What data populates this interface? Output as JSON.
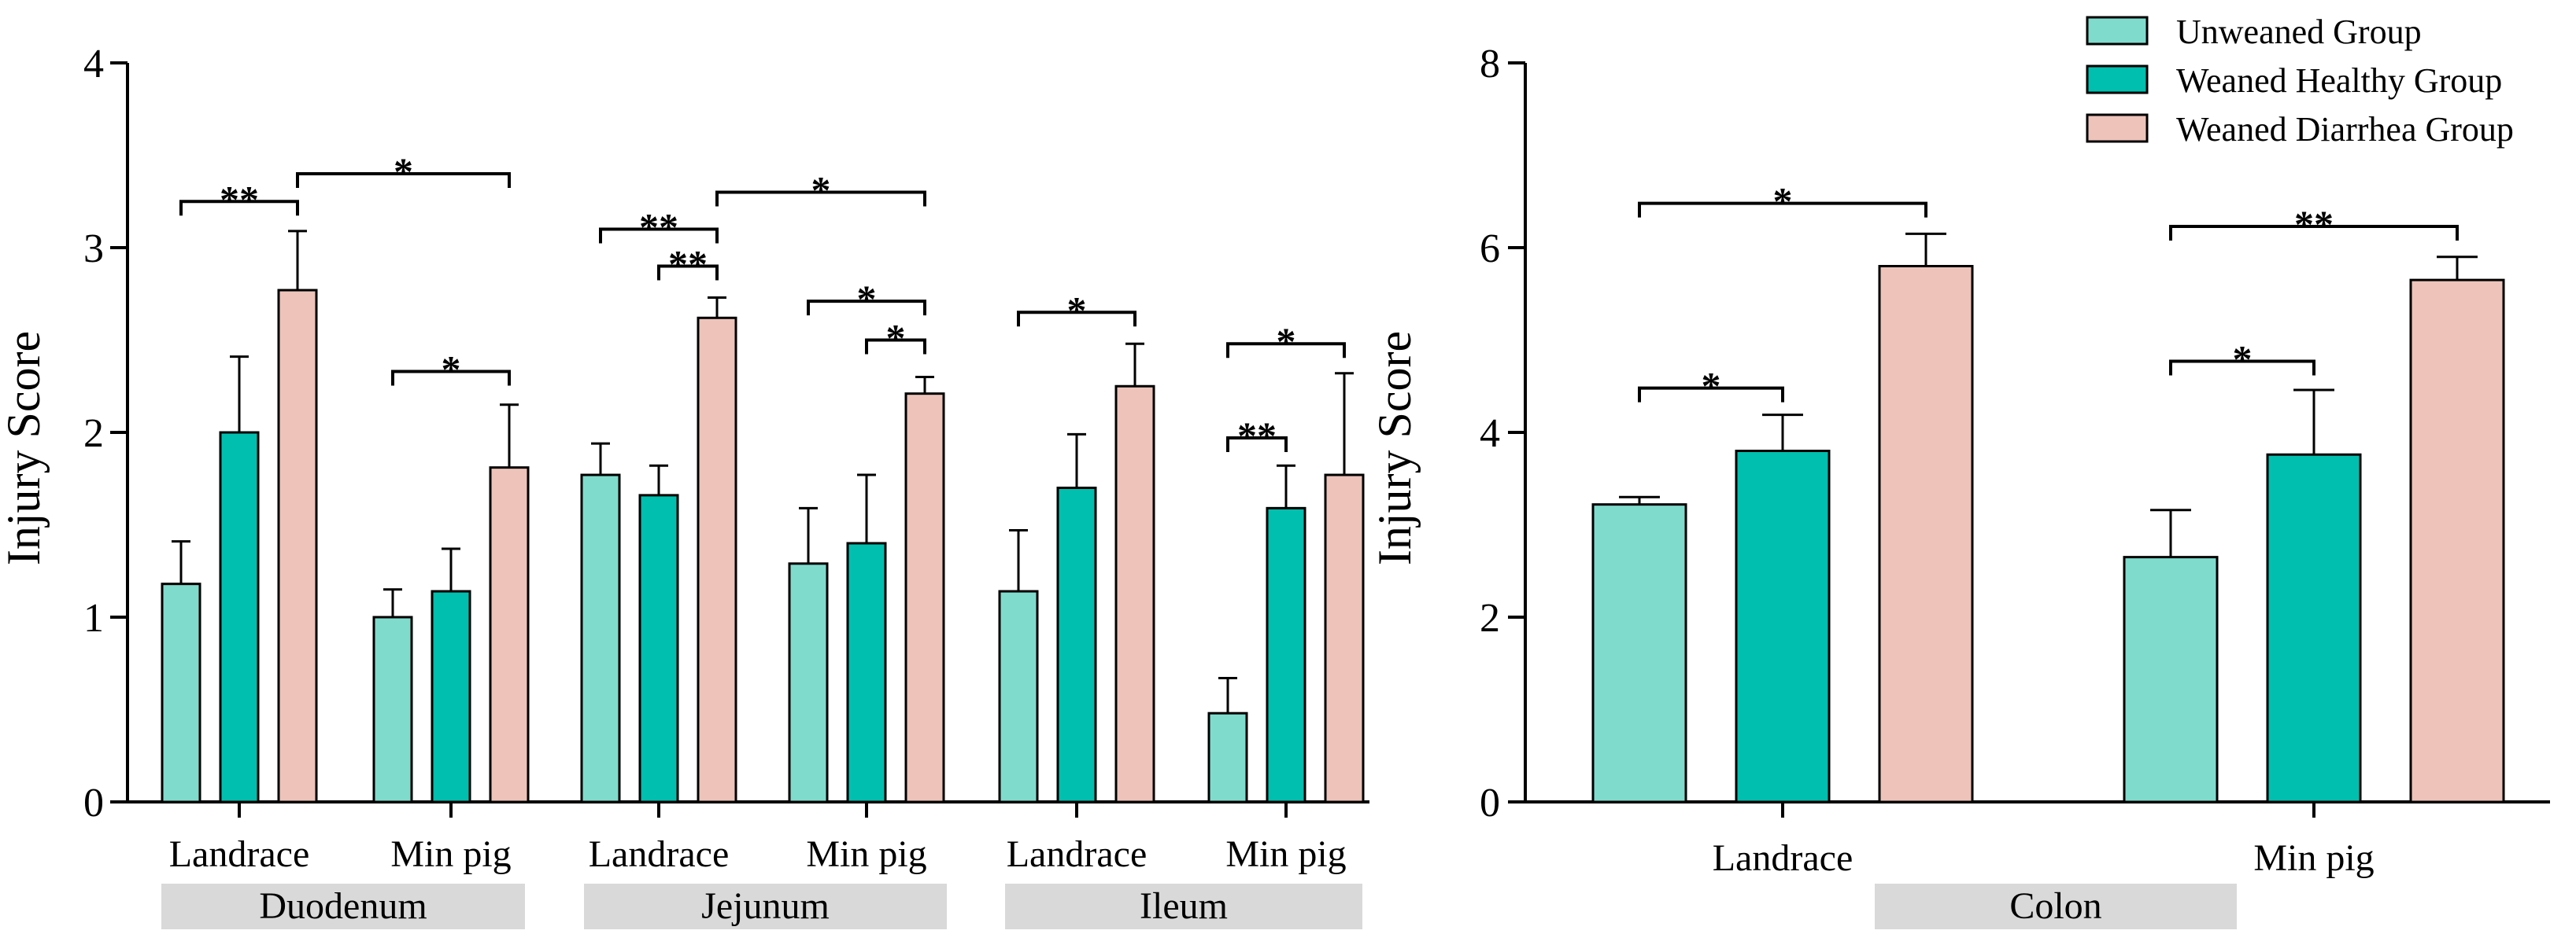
{
  "colors": {
    "unweaned": "#7fdccd",
    "weaned_healthy": "#00bfae",
    "weaned_diarrhea": "#edc3ba"
  },
  "legend": [
    {
      "key": "unweaned",
      "label": "Unweaned Group"
    },
    {
      "key": "weaned_healthy",
      "label": "Weaned Healthy Group"
    },
    {
      "key": "weaned_diarrhea",
      "label": "Weaned Diarrhea Group"
    }
  ],
  "chart_data": [
    {
      "type": "bar",
      "ylabel": "Injury Score",
      "ylim": [
        0,
        4
      ],
      "yticks": [
        "0",
        "1",
        "2",
        "3",
        "4"
      ],
      "series_keys": [
        "unweaned",
        "weaned_healthy",
        "weaned_diarrhea"
      ],
      "groups": [
        {
          "label": "Landrace",
          "region": "Duodenum",
          "values": [
            1.18,
            2.0,
            2.77
          ],
          "errors": [
            0.23,
            0.41,
            0.32
          ]
        },
        {
          "label": "Min pig",
          "region": "Duodenum",
          "values": [
            1.0,
            1.14,
            1.81
          ],
          "errors": [
            0.15,
            0.23,
            0.34
          ]
        },
        {
          "label": "Landrace",
          "region": "Jejunum",
          "values": [
            1.77,
            1.66,
            2.62
          ],
          "errors": [
            0.17,
            0.16,
            0.11
          ]
        },
        {
          "label": "Min pig",
          "region": "Jejunum",
          "values": [
            1.29,
            1.4,
            2.21
          ],
          "errors": [
            0.3,
            0.37,
            0.09
          ]
        },
        {
          "label": "Landrace",
          "region": "Ileum",
          "values": [
            1.14,
            1.7,
            2.25
          ],
          "errors": [
            0.33,
            0.29,
            0.23
          ]
        },
        {
          "label": "Min pig",
          "region": "Ileum",
          "values": [
            0.48,
            1.59,
            1.77
          ],
          "errors": [
            0.19,
            0.23,
            0.55
          ]
        }
      ],
      "regions": [
        "Duodenum",
        "Jejunum",
        "Ileum"
      ],
      "significance": [
        {
          "g1": 0,
          "s1": 0,
          "g2": 0,
          "s2": 2,
          "y": 3.25,
          "label": "**"
        },
        {
          "g1": 0,
          "s1": 2,
          "g2": 1,
          "s2": 2,
          "y": 3.4,
          "label": "*"
        },
        {
          "g1": 1,
          "s1": 0,
          "g2": 1,
          "s2": 2,
          "y": 2.33,
          "label": "*"
        },
        {
          "g1": 2,
          "s1": 0,
          "g2": 2,
          "s2": 2,
          "y": 3.1,
          "label": "**"
        },
        {
          "g1": 2,
          "s1": 1,
          "g2": 2,
          "s2": 2,
          "y": 2.9,
          "label": "**"
        },
        {
          "g1": 2,
          "s1": 2,
          "g2": 3,
          "s2": 2,
          "y": 3.3,
          "label": "*"
        },
        {
          "g1": 3,
          "s1": 0,
          "g2": 3,
          "s2": 2,
          "y": 2.71,
          "label": "*"
        },
        {
          "g1": 3,
          "s1": 1,
          "g2": 3,
          "s2": 2,
          "y": 2.5,
          "label": "*"
        },
        {
          "g1": 4,
          "s1": 0,
          "g2": 4,
          "s2": 2,
          "y": 2.65,
          "label": "*"
        },
        {
          "g1": 5,
          "s1": 0,
          "g2": 5,
          "s2": 1,
          "y": 1.97,
          "label": "**"
        },
        {
          "g1": 5,
          "s1": 0,
          "g2": 5,
          "s2": 2,
          "y": 2.48,
          "label": "*"
        }
      ]
    },
    {
      "type": "bar",
      "ylabel": "Injury Score",
      "ylim": [
        0,
        8
      ],
      "yticks": [
        "0",
        "2",
        "4",
        "6",
        "8"
      ],
      "series_keys": [
        "unweaned",
        "weaned_healthy",
        "weaned_diarrhea"
      ],
      "groups": [
        {
          "label": "Landrace",
          "region": "Colon",
          "values": [
            3.22,
            3.8,
            5.8
          ],
          "errors": [
            0.08,
            0.39,
            0.35
          ]
        },
        {
          "label": "Min pig",
          "region": "Colon",
          "values": [
            2.65,
            3.76,
            5.65
          ],
          "errors": [
            0.51,
            0.7,
            0.25
          ]
        }
      ],
      "regions": [
        "Colon"
      ],
      "significance": [
        {
          "g1": 0,
          "s1": 0,
          "g2": 0,
          "s2": 2,
          "y": 6.48,
          "label": "*"
        },
        {
          "g1": 0,
          "s1": 0,
          "g2": 0,
          "s2": 1,
          "y": 4.48,
          "label": "*"
        },
        {
          "g1": 1,
          "s1": 0,
          "g2": 1,
          "s2": 2,
          "y": 6.23,
          "label": "**"
        },
        {
          "g1": 1,
          "s1": 0,
          "g2": 1,
          "s2": 1,
          "y": 4.77,
          "label": "*"
        }
      ]
    }
  ]
}
